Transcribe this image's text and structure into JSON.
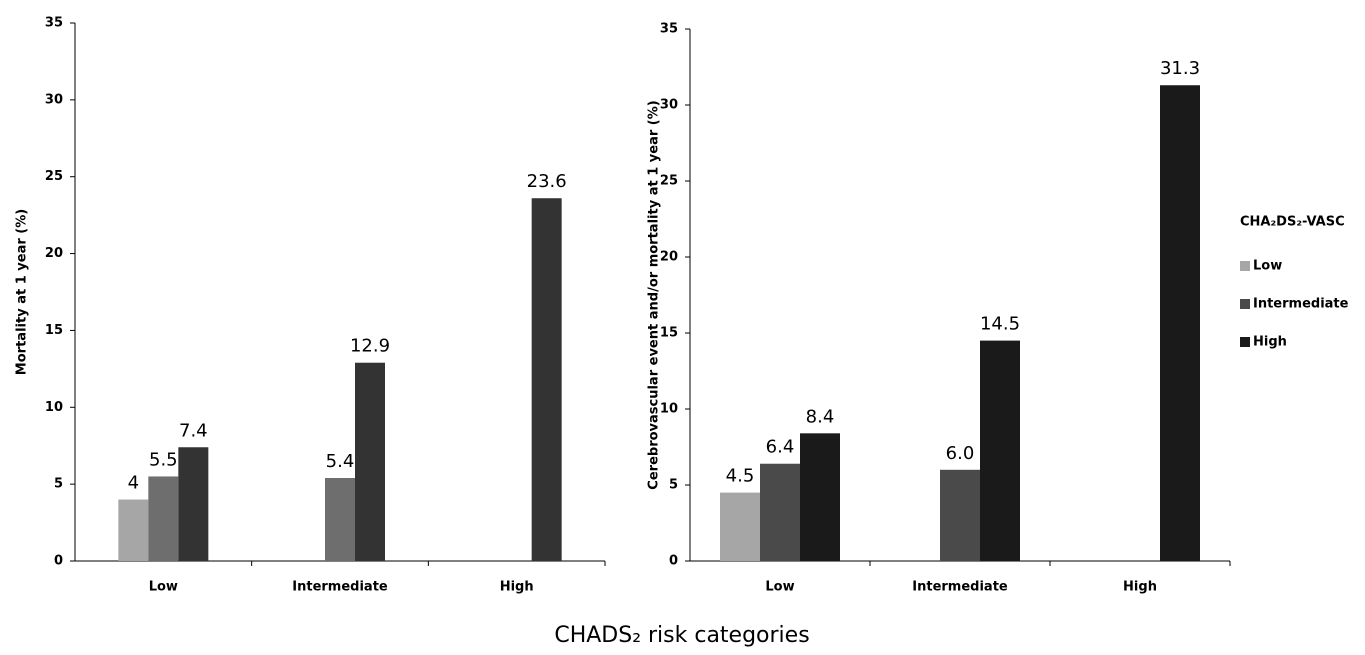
{
  "chart_data": [
    {
      "type": "bar",
      "ylabel": "Mortality at 1 year (%)",
      "categories": [
        "Low",
        "Intermediate",
        "High"
      ],
      "series": [
        {
          "name": "Low",
          "color": "#a6a6a6",
          "values": [
            4,
            null,
            null
          ],
          "value_labels": [
            "4",
            null,
            null
          ]
        },
        {
          "name": "Intermediate",
          "color": "#6e6e6e",
          "values": [
            5.5,
            5.4,
            null
          ],
          "value_labels": [
            "5.5",
            "5.4",
            null
          ]
        },
        {
          "name": "High",
          "color": "#333333",
          "values": [
            7.4,
            12.9,
            23.6
          ],
          "value_labels": [
            "7.4",
            "12.9",
            "23.6"
          ]
        }
      ],
      "ylim": [
        0,
        35
      ],
      "yticks": [
        0,
        5,
        10,
        15,
        20,
        25,
        30,
        35
      ],
      "grid": false
    },
    {
      "type": "bar",
      "ylabel": "Cerebrovascular event and/or mortality at 1 year (%)",
      "categories": [
        "Low",
        "Intermediate",
        "High"
      ],
      "series": [
        {
          "name": "Low",
          "color": "#a6a6a6",
          "values": [
            4.5,
            null,
            null
          ],
          "value_labels": [
            "4.5",
            null,
            null
          ]
        },
        {
          "name": "Intermediate",
          "color": "#4a4a4a",
          "values": [
            6.4,
            6.0,
            null
          ],
          "value_labels": [
            "6.4",
            "6.0",
            null
          ]
        },
        {
          "name": "High",
          "color": "#1a1a1a",
          "values": [
            8.4,
            14.5,
            31.3
          ],
          "value_labels": [
            "8.4",
            "14.5",
            "31.3"
          ]
        }
      ],
      "ylim": [
        0,
        35
      ],
      "yticks": [
        0,
        5,
        10,
        15,
        20,
        25,
        30,
        35
      ],
      "grid": false,
      "legend": {
        "title": "CHA₂DS₂-VASC",
        "position": "right"
      }
    }
  ],
  "x_axis_title": "CHADS₂ risk categories"
}
